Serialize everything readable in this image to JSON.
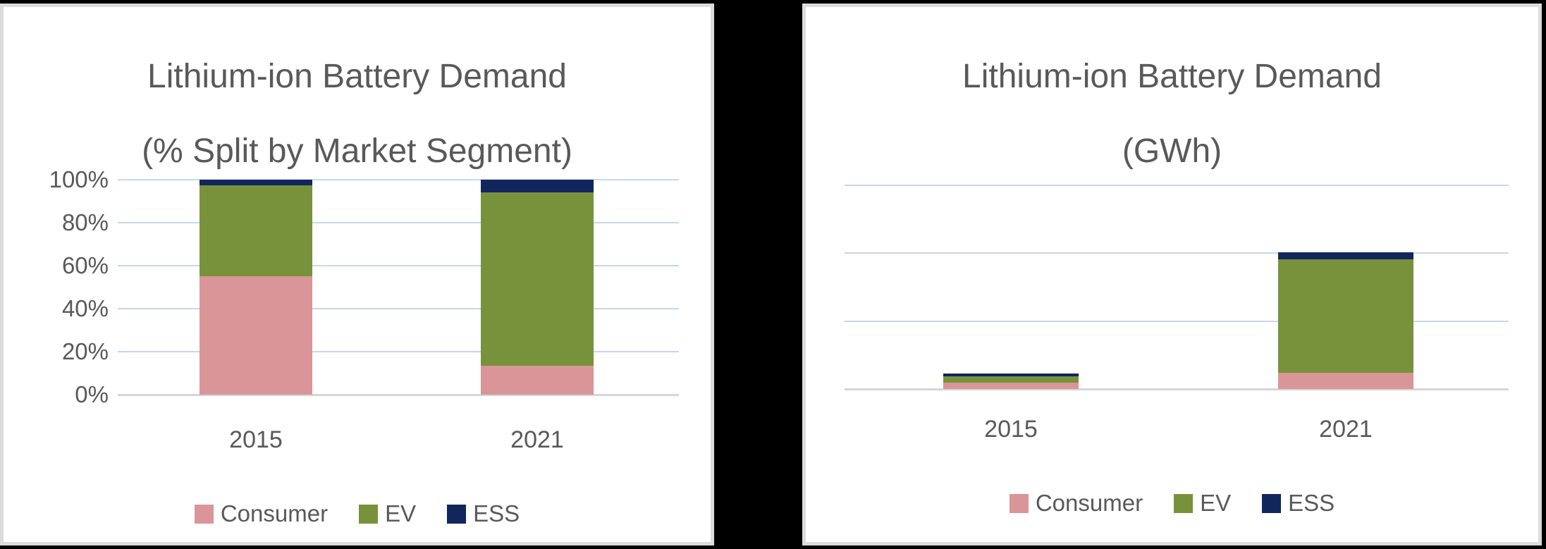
{
  "page": {
    "background_color": "#000000",
    "card_background": "#ffffff",
    "card_border_color": "#dcdcdc",
    "text_color": "#595959",
    "gridline_color": "#c7d7ea",
    "axis_line_color": "#d6d6d6"
  },
  "chart_data": [
    {
      "type": "bar",
      "stacked": true,
      "title": "Lithium-ion Battery Demand (% Split by Market Segment)",
      "title_lines": [
        "Lithium-ion Battery Demand",
        "(% Split by Market Segment)"
      ],
      "categories": [
        "2015",
        "2021"
      ],
      "series": [
        {
          "name": "Consumer",
          "color": "#d99598",
          "values": [
            55,
            13.5
          ]
        },
        {
          "name": "EV",
          "color": "#78923c",
          "values": [
            42.5,
            80.5
          ]
        },
        {
          "name": "ESS",
          "color": "#12265e",
          "values": [
            2.5,
            6
          ]
        }
      ],
      "xlabel": "",
      "ylabel": "",
      "y_axis": {
        "min": 0,
        "max": 100,
        "unit": "%",
        "labels_shown": true,
        "ticks": [
          {
            "label": "0%",
            "value": 0
          },
          {
            "label": "20%",
            "value": 20
          },
          {
            "label": "40%",
            "value": 40
          },
          {
            "label": "60%",
            "value": 60
          },
          {
            "label": "80%",
            "value": 80
          },
          {
            "label": "100%",
            "value": 100
          }
        ],
        "gridline_values": [
          0,
          20,
          40,
          60,
          80,
          100
        ]
      },
      "grid": true,
      "legend_position": "bottom",
      "legend_labels": [
        "Consumer",
        "EV",
        "ESS"
      ]
    },
    {
      "type": "bar",
      "stacked": true,
      "title": "Lithium-ion Battery Demand (GWh)",
      "title_lines": [
        "Lithium-ion Battery Demand",
        "(GWh)"
      ],
      "categories": [
        "2015",
        "2021"
      ],
      "series": [
        {
          "name": "Consumer",
          "color": "#d99598",
          "values": [
            18,
            48
          ]
        },
        {
          "name": "EV",
          "color": "#78923c",
          "values": [
            20,
            333
          ]
        },
        {
          "name": "ESS",
          "color": "#12265e",
          "values": [
            8,
            21
          ]
        }
      ],
      "xlabel": "",
      "ylabel": "",
      "y_axis": {
        "min": 0,
        "max": 600,
        "unit": "GWh",
        "labels_shown": false,
        "note": "axis tick labels not shown in chart; values estimated from unlabeled gridlines at ~200 GWh intervals",
        "ticks": [],
        "gridline_values": [
          0,
          200,
          400,
          600
        ]
      },
      "grid": true,
      "legend_position": "bottom",
      "legend_labels": [
        "Consumer",
        "EV",
        "ESS"
      ]
    }
  ]
}
